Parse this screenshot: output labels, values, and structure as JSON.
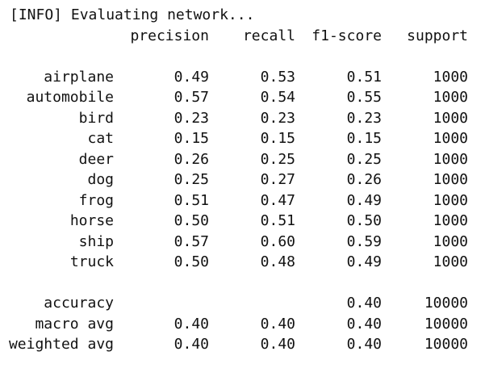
{
  "console": {
    "info_line": "[INFO] Evaluating network..."
  },
  "report": {
    "headers": {
      "precision": "precision",
      "recall": "recall",
      "f1": "f1-score",
      "support": "support"
    },
    "classes": [
      {
        "label": "airplane",
        "precision": "0.49",
        "recall": "0.53",
        "f1": "0.51",
        "support": "1000"
      },
      {
        "label": "automobile",
        "precision": "0.57",
        "recall": "0.54",
        "f1": "0.55",
        "support": "1000"
      },
      {
        "label": "bird",
        "precision": "0.23",
        "recall": "0.23",
        "f1": "0.23",
        "support": "1000"
      },
      {
        "label": "cat",
        "precision": "0.15",
        "recall": "0.15",
        "f1": "0.15",
        "support": "1000"
      },
      {
        "label": "deer",
        "precision": "0.26",
        "recall": "0.25",
        "f1": "0.25",
        "support": "1000"
      },
      {
        "label": "dog",
        "precision": "0.25",
        "recall": "0.27",
        "f1": "0.26",
        "support": "1000"
      },
      {
        "label": "frog",
        "precision": "0.51",
        "recall": "0.47",
        "f1": "0.49",
        "support": "1000"
      },
      {
        "label": "horse",
        "precision": "0.50",
        "recall": "0.51",
        "f1": "0.50",
        "support": "1000"
      },
      {
        "label": "ship",
        "precision": "0.57",
        "recall": "0.60",
        "f1": "0.59",
        "support": "1000"
      },
      {
        "label": "truck",
        "precision": "0.50",
        "recall": "0.48",
        "f1": "0.49",
        "support": "1000"
      }
    ],
    "summary": [
      {
        "label": "accuracy",
        "precision": "",
        "recall": "",
        "f1": "0.40",
        "support": "10000"
      },
      {
        "label": "macro avg",
        "precision": "0.40",
        "recall": "0.40",
        "f1": "0.40",
        "support": "10000"
      },
      {
        "label": "weighted avg",
        "precision": "0.40",
        "recall": "0.40",
        "f1": "0.40",
        "support": "10000"
      }
    ]
  }
}
